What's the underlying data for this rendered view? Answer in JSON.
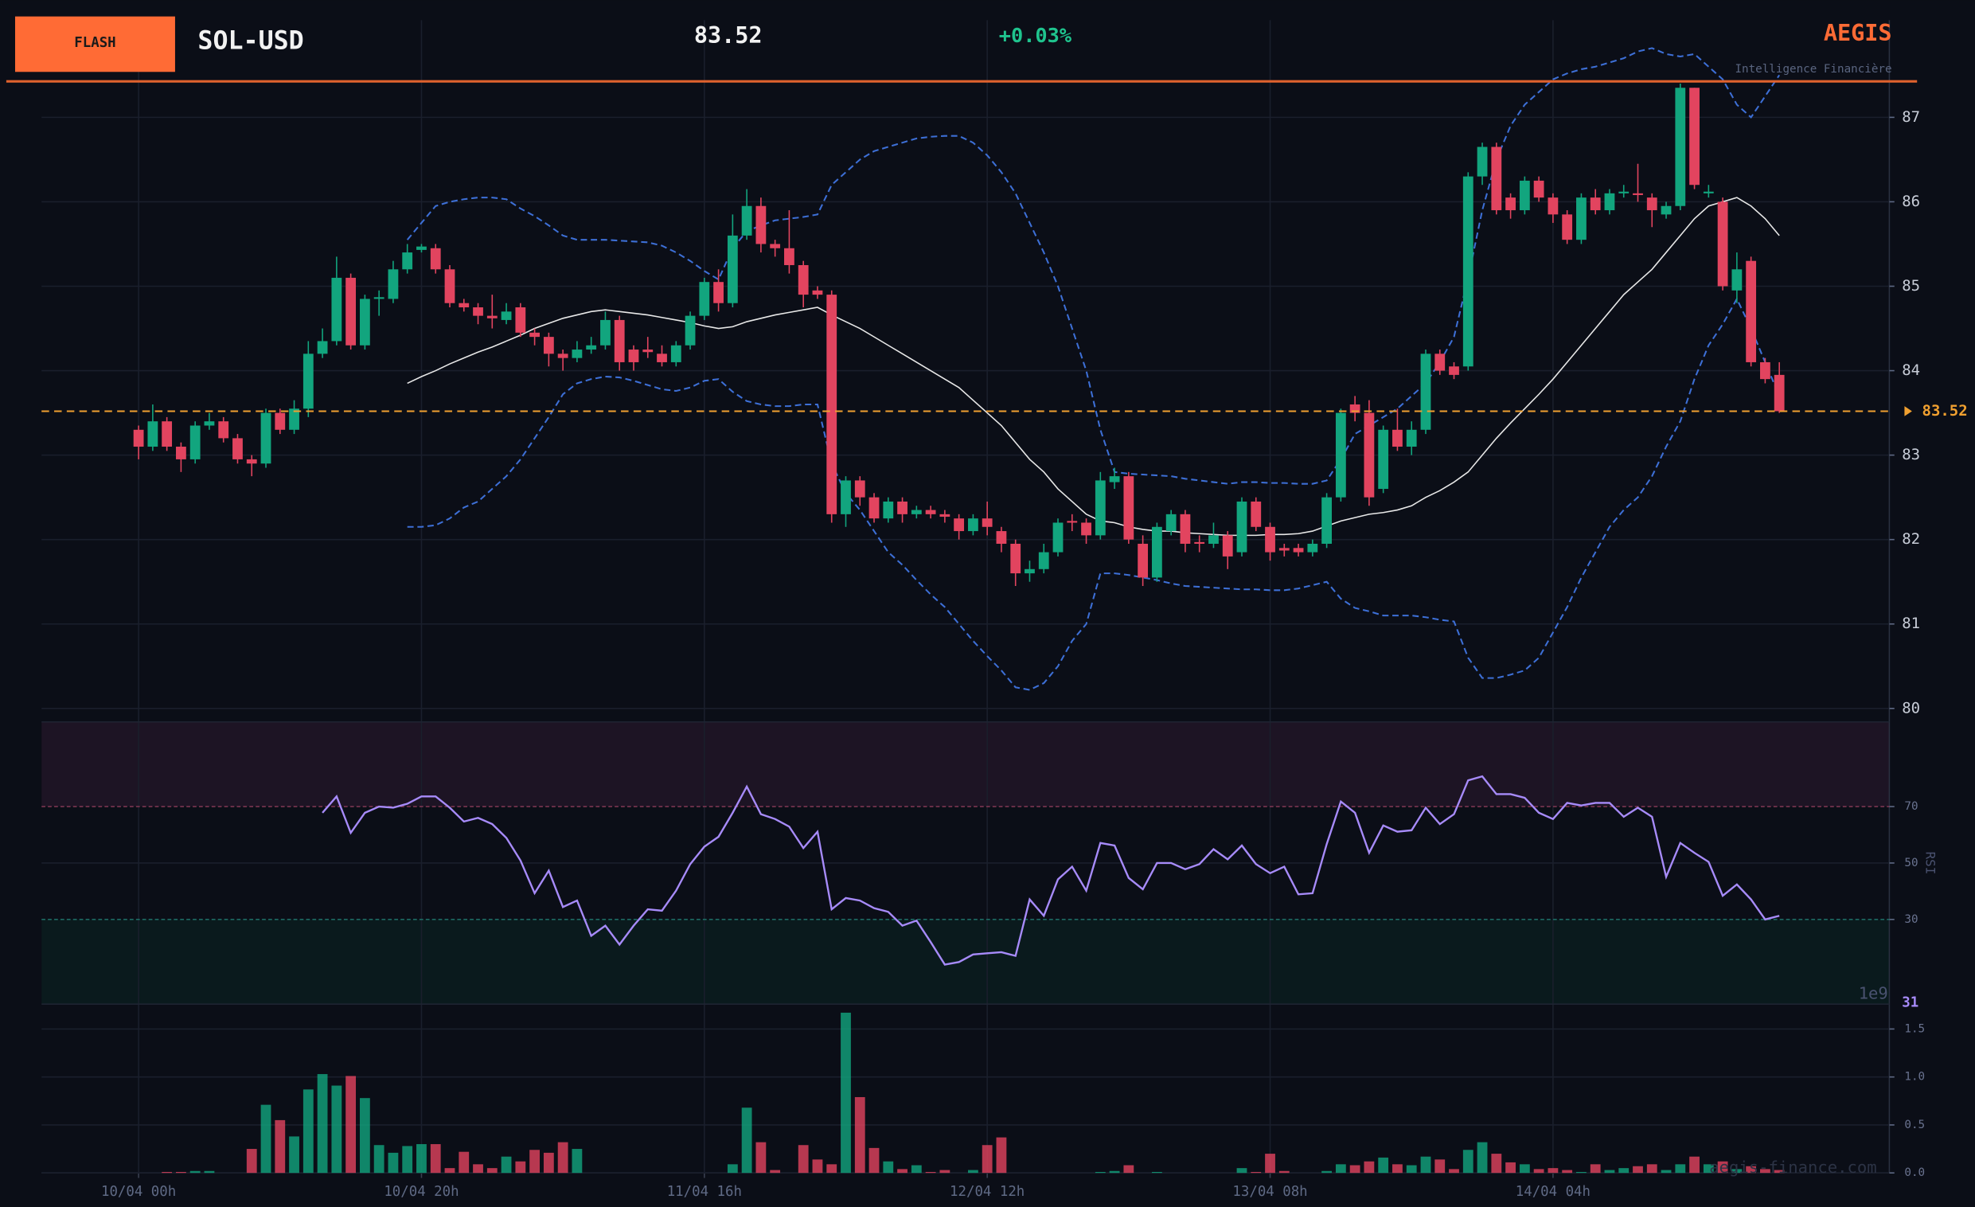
{
  "header": {
    "badge": "FLASH",
    "symbol": "SOL-USD",
    "price": "83.52",
    "change": "+0.03%",
    "brand": "AEGIS",
    "tagline": "Intelligence Financière"
  },
  "chart_data": {
    "type": "candlestick",
    "xlim": [
      -6.86,
      123.78
    ],
    "xticks": [
      {
        "value": 0,
        "label": "10/04 00h"
      },
      {
        "value": 20,
        "label": "10/04 20h"
      },
      {
        "value": 40,
        "label": "11/04 16h"
      },
      {
        "value": 60,
        "label": "12/04 12h"
      },
      {
        "value": 80,
        "label": "13/04 08h"
      },
      {
        "value": 100,
        "label": "14/04 04h"
      }
    ],
    "ylim": [
      79.9,
      88.15
    ],
    "yticks": [
      80,
      81,
      82,
      83,
      84,
      85,
      86,
      87
    ],
    "grid": true,
    "up_color": "#12a57e",
    "down_color": "#e2445f",
    "open": [
      83.3,
      83.1,
      83.4,
      83.1,
      82.95,
      83.35,
      83.4,
      83.2,
      82.95,
      82.9,
      83.5,
      83.3,
      83.55,
      84.2,
      84.35,
      85.1,
      84.3,
      84.85,
      84.85,
      85.2,
      85.43,
      85.45,
      85.2,
      84.8,
      84.75,
      84.65,
      84.6,
      84.75,
      84.45,
      84.4,
      84.2,
      84.15,
      84.25,
      84.3,
      84.6,
      84.25,
      84.25,
      84.2,
      84.1,
      84.3,
      84.65,
      85.05,
      84.8,
      85.6,
      85.95,
      85.5,
      85.45,
      85.25,
      84.95,
      84.9,
      82.3,
      82.7,
      82.5,
      82.25,
      82.45,
      82.3,
      82.35,
      82.3,
      82.25,
      82.1,
      82.25,
      82.1,
      81.95,
      81.6,
      81.65,
      81.85,
      82.22,
      82.2,
      82.05,
      82.68,
      82.75,
      81.95,
      81.55,
      82.1,
      82.3,
      81.97,
      81.95,
      82.05,
      81.85,
      82.45,
      82.15,
      81.9,
      81.9,
      81.85,
      81.95,
      82.5,
      83.6,
      83.5,
      82.6,
      83.3,
      83.1,
      83.3,
      84.2,
      84.05,
      84.05,
      86.3,
      86.65,
      86.05,
      85.9,
      86.25,
      86.05,
      85.85,
      85.55,
      86.05,
      85.9,
      86.1,
      86.1,
      86.05,
      85.85,
      85.95,
      87.35,
      86.1,
      86.0,
      84.95,
      85.3,
      84.1,
      83.95
    ],
    "high": [
      83.35,
      83.6,
      83.45,
      83.15,
      83.4,
      83.5,
      83.45,
      83.25,
      83.0,
      83.55,
      83.55,
      83.65,
      84.35,
      84.5,
      85.35,
      85.15,
      84.9,
      84.95,
      85.3,
      85.5,
      85.5,
      85.5,
      85.25,
      84.85,
      84.8,
      84.9,
      84.8,
      84.8,
      84.5,
      84.45,
      84.25,
      84.35,
      84.4,
      84.7,
      84.65,
      84.3,
      84.4,
      84.3,
      84.35,
      84.7,
      85.1,
      85.2,
      85.85,
      86.15,
      86.05,
      85.55,
      85.9,
      85.3,
      85.0,
      84.95,
      82.75,
      82.75,
      82.55,
      82.5,
      82.5,
      82.4,
      82.4,
      82.35,
      82.3,
      82.3,
      82.45,
      82.15,
      82.0,
      81.75,
      81.95,
      82.25,
      82.3,
      82.25,
      82.8,
      82.85,
      82.8,
      82.05,
      82.2,
      82.35,
      82.35,
      82.05,
      82.2,
      82.1,
      82.5,
      82.5,
      82.2,
      81.95,
      81.95,
      82.0,
      82.55,
      83.55,
      83.7,
      83.65,
      83.35,
      83.55,
      83.4,
      84.25,
      84.25,
      84.1,
      86.35,
      86.7,
      86.7,
      86.1,
      86.3,
      86.3,
      86.1,
      85.9,
      86.1,
      86.15,
      86.15,
      86.2,
      86.45,
      86.1,
      86.0,
      87.4,
      87.35,
      86.2,
      86.05,
      85.4,
      85.35,
      84.15,
      84.1
    ],
    "low": [
      82.95,
      83.05,
      83.05,
      82.8,
      82.9,
      83.3,
      83.15,
      82.9,
      82.75,
      82.85,
      83.25,
      83.25,
      83.45,
      84.15,
      84.3,
      84.25,
      84.25,
      84.65,
      84.8,
      85.15,
      85.4,
      85.15,
      84.75,
      84.7,
      84.55,
      84.5,
      84.55,
      84.4,
      84.3,
      84.05,
      84.0,
      84.1,
      84.2,
      84.25,
      84.0,
      84.0,
      84.15,
      84.05,
      84.05,
      84.25,
      84.6,
      84.7,
      84.75,
      85.55,
      85.4,
      85.35,
      85.15,
      84.75,
      84.85,
      82.2,
      82.15,
      82.4,
      82.2,
      82.2,
      82.2,
      82.25,
      82.25,
      82.2,
      82.0,
      82.05,
      82.05,
      81.85,
      81.45,
      81.5,
      81.6,
      81.8,
      82.1,
      81.95,
      82.0,
      82.6,
      81.95,
      81.45,
      81.5,
      82.05,
      81.85,
      81.85,
      81.9,
      81.65,
      81.8,
      82.1,
      81.75,
      81.8,
      81.8,
      81.8,
      81.9,
      82.45,
      83.4,
      82.4,
      82.55,
      83.05,
      83.0,
      83.25,
      83.95,
      83.9,
      84.0,
      86.2,
      85.85,
      85.8,
      85.85,
      86.0,
      85.75,
      85.5,
      85.5,
      85.85,
      85.85,
      86.05,
      86.0,
      85.7,
      85.8,
      85.9,
      86.15,
      86.05,
      84.95,
      84.8,
      84.05,
      83.85,
      83.5
    ],
    "close": [
      83.1,
      83.4,
      83.1,
      82.95,
      83.35,
      83.4,
      83.2,
      82.95,
      82.9,
      83.5,
      83.3,
      83.55,
      84.2,
      84.35,
      85.1,
      84.3,
      84.85,
      84.87,
      85.2,
      85.4,
      85.47,
      85.2,
      84.8,
      84.75,
      84.65,
      84.62,
      84.7,
      84.45,
      84.4,
      84.2,
      84.15,
      84.25,
      84.3,
      84.6,
      84.1,
      84.1,
      84.22,
      84.1,
      84.3,
      84.65,
      85.05,
      84.8,
      85.6,
      85.95,
      85.5,
      85.45,
      85.25,
      84.9,
      84.9,
      82.3,
      82.7,
      82.5,
      82.25,
      82.45,
      82.3,
      82.35,
      82.3,
      82.27,
      82.1,
      82.25,
      82.15,
      81.95,
      81.6,
      81.65,
      81.85,
      82.2,
      82.2,
      82.05,
      82.7,
      82.75,
      82.0,
      81.55,
      82.15,
      82.3,
      81.95,
      81.95,
      82.05,
      81.8,
      82.45,
      82.15,
      81.85,
      81.87,
      81.85,
      81.95,
      82.5,
      83.5,
      83.5,
      82.5,
      83.3,
      83.1,
      83.3,
      84.2,
      84.0,
      83.95,
      86.3,
      86.65,
      85.9,
      85.9,
      86.25,
      86.05,
      85.85,
      85.55,
      86.05,
      85.9,
      86.1,
      86.12,
      86.08,
      85.9,
      85.95,
      87.35,
      86.2,
      86.12,
      85.0,
      85.2,
      84.1,
      83.9,
      83.52
    ],
    "band_color": "#3d6fd6",
    "middle_color": "#e8e8e8",
    "bb_upper": [
      null,
      null,
      null,
      null,
      null,
      null,
      null,
      null,
      null,
      null,
      null,
      null,
      null,
      null,
      null,
      null,
      null,
      null,
      null,
      85.55,
      85.75,
      85.95,
      86.0,
      86.03,
      86.05,
      86.05,
      86.03,
      85.92,
      85.83,
      85.72,
      85.6,
      85.55,
      85.55,
      85.55,
      85.54,
      85.53,
      85.52,
      85.48,
      85.4,
      85.3,
      85.18,
      85.08,
      85.45,
      85.65,
      85.72,
      85.78,
      85.8,
      85.82,
      85.85,
      86.2,
      86.35,
      86.5,
      86.6,
      86.65,
      86.7,
      86.75,
      86.77,
      86.78,
      86.78,
      86.7,
      86.55,
      86.35,
      86.1,
      85.75,
      85.4,
      85.0,
      84.5,
      84.0,
      83.3,
      82.8,
      82.78,
      82.77,
      82.76,
      82.75,
      82.72,
      82.7,
      82.68,
      82.66,
      82.68,
      82.68,
      82.67,
      82.67,
      82.66,
      82.66,
      82.7,
      82.95,
      83.25,
      83.35,
      83.45,
      83.55,
      83.7,
      83.85,
      84.1,
      84.4,
      85.1,
      85.9,
      86.5,
      86.9,
      87.15,
      87.3,
      87.45,
      87.52,
      87.57,
      87.6,
      87.65,
      87.7,
      87.78,
      87.82,
      87.75,
      87.72,
      87.75,
      87.6,
      87.45,
      87.15,
      87.0,
      87.25,
      87.5
    ],
    "bb_middle": [
      null,
      null,
      null,
      null,
      null,
      null,
      null,
      null,
      null,
      null,
      null,
      null,
      null,
      null,
      null,
      null,
      null,
      null,
      null,
      83.85,
      83.93,
      84.0,
      84.08,
      84.15,
      84.22,
      84.28,
      84.35,
      84.42,
      84.5,
      84.56,
      84.62,
      84.66,
      84.7,
      84.72,
      84.7,
      84.68,
      84.66,
      84.63,
      84.6,
      84.57,
      84.53,
      84.5,
      84.52,
      84.58,
      84.62,
      84.66,
      84.69,
      84.72,
      84.75,
      84.66,
      84.58,
      84.5,
      84.4,
      84.3,
      84.2,
      84.1,
      84.0,
      83.9,
      83.8,
      83.65,
      83.5,
      83.35,
      83.15,
      82.95,
      82.8,
      82.6,
      82.45,
      82.3,
      82.22,
      82.2,
      82.15,
      82.12,
      82.1,
      82.1,
      82.08,
      82.07,
      82.06,
      82.05,
      82.05,
      82.05,
      82.06,
      82.06,
      82.07,
      82.1,
      82.16,
      82.22,
      82.26,
      82.3,
      82.32,
      82.35,
      82.4,
      82.5,
      82.58,
      82.68,
      82.8,
      83.0,
      83.2,
      83.38,
      83.55,
      83.72,
      83.9,
      84.1,
      84.3,
      84.5,
      84.7,
      84.9,
      85.05,
      85.2,
      85.4,
      85.6,
      85.8,
      85.95,
      86.0,
      86.05,
      85.95,
      85.8,
      85.6
    ],
    "bb_lower": [
      null,
      null,
      null,
      null,
      null,
      null,
      null,
      null,
      null,
      null,
      null,
      null,
      null,
      null,
      null,
      null,
      null,
      null,
      null,
      82.15,
      82.15,
      82.17,
      82.25,
      82.38,
      82.45,
      82.6,
      82.75,
      82.95,
      83.2,
      83.45,
      83.72,
      83.85,
      83.9,
      83.93,
      83.92,
      83.88,
      83.83,
      83.78,
      83.76,
      83.8,
      83.88,
      83.9,
      83.75,
      83.64,
      83.6,
      83.58,
      83.58,
      83.6,
      83.6,
      82.9,
      82.55,
      82.35,
      82.1,
      81.85,
      81.7,
      81.52,
      81.35,
      81.2,
      81.0,
      80.8,
      80.62,
      80.45,
      80.25,
      80.22,
      80.3,
      80.5,
      80.8,
      81.0,
      81.6,
      81.6,
      81.58,
      81.55,
      81.52,
      81.48,
      81.45,
      81.44,
      81.43,
      81.42,
      81.41,
      81.41,
      81.4,
      81.4,
      81.42,
      81.46,
      81.5,
      81.3,
      81.19,
      81.15,
      81.1,
      81.1,
      81.1,
      81.08,
      81.05,
      81.03,
      80.6,
      80.36,
      80.36,
      80.4,
      80.45,
      80.6,
      80.9,
      81.2,
      81.55,
      81.85,
      82.15,
      82.35,
      82.5,
      82.75,
      83.1,
      83.4,
      83.9,
      84.3,
      84.55,
      84.85,
      84.5,
      84.1,
      83.7
    ],
    "last_price": 83.52,
    "last_price_color": "#f0a030",
    "rsi": {
      "label": "RSI",
      "ylim": [
        0,
        100
      ],
      "yticks": [
        30,
        50,
        70
      ],
      "overbought": 70,
      "oversold": 30,
      "color": "#a78bfa",
      "current": 31,
      "values": [
        null,
        null,
        null,
        null,
        null,
        null,
        null,
        null,
        null,
        null,
        null,
        null,
        null,
        67.8,
        73.6,
        60.7,
        67.8,
        70,
        69.6,
        71,
        73.6,
        73.6,
        69.6,
        64.7,
        66,
        63.8,
        58.9,
        50.9,
        39.3,
        47.3,
        34.4,
        36.7,
        24.2,
        27.8,
        21.1,
        27.8,
        33.6,
        33.1,
        40.2,
        49.6,
        55.8,
        59.3,
        67.8,
        77.1,
        67.3,
        65.6,
        62.9,
        55.3,
        61.1,
        33.6,
        37.6,
        36.7,
        34,
        32.7,
        27.8,
        29.6,
        22,
        14,
        14.9,
        17.6,
        18,
        18.4,
        17.1,
        37.1,
        31.3,
        44.2,
        48.7,
        40.2,
        57.1,
        56.2,
        44.7,
        40.7,
        50,
        50,
        47.8,
        49.6,
        54.9,
        51.3,
        56.2,
        49.6,
        46.4,
        48.7,
        38.9,
        39.3,
        56.7,
        71.8,
        67.8,
        53.6,
        63.3,
        61.1,
        61.6,
        69.6,
        63.8,
        67.3,
        79.3,
        80.7,
        74.4,
        74.4,
        73.1,
        67.8,
        65.6,
        71.3,
        70.4,
        71.3,
        71.3,
        66.4,
        69.6,
        66.4,
        45.1,
        57.1,
        53.6,
        50.4,
        38.4,
        42.4,
        37.1,
        30,
        31.3
      ]
    },
    "volume": {
      "ylim": [
        0,
        1.72
      ],
      "yticks": [
        {
          "value": 0,
          "label": "0.0"
        },
        0.5,
        {
          "value": 1,
          "label": "1.0"
        },
        1.5
      ],
      "offset_label": "1e9",
      "values": [
        0,
        0,
        0.01,
        0.01,
        0.02,
        0.02,
        0,
        0,
        0.25,
        0.71,
        0.55,
        0.38,
        0.87,
        1.03,
        0.91,
        1.01,
        0.78,
        0.29,
        0.21,
        0.28,
        0.3,
        0.3,
        0.05,
        0.22,
        0.09,
        0.05,
        0.17,
        0.12,
        0.24,
        0.21,
        0.32,
        0.25,
        0,
        0,
        0,
        0,
        0,
        0,
        0,
        0,
        0,
        0,
        0.09,
        0.68,
        0.32,
        0.03,
        0,
        0.29,
        0.14,
        0.09,
        1.67,
        0.79,
        0.26,
        0.12,
        0.04,
        0.08,
        0.01,
        0.03,
        0,
        0.03,
        0.29,
        0.37,
        0,
        0,
        0,
        0,
        0,
        0,
        0.01,
        0.02,
        0.08,
        0,
        0.01,
        0,
        0,
        0,
        0,
        0,
        0.05,
        0.01,
        0.2,
        0.02,
        0,
        0,
        0.02,
        0.09,
        0.08,
        0.12,
        0.16,
        0.09,
        0.08,
        0.17,
        0.14,
        0.04,
        0.24,
        0.32,
        0.2,
        0.11,
        0.09,
        0.04,
        0.05,
        0.03,
        0.01,
        0.09,
        0.03,
        0.05,
        0.07,
        0.09,
        0.03,
        0.09,
        0.17,
        0.09,
        0.12,
        0.04,
        0.07,
        0.04,
        0.03
      ]
    },
    "watermark": "aegis-finance.com"
  }
}
